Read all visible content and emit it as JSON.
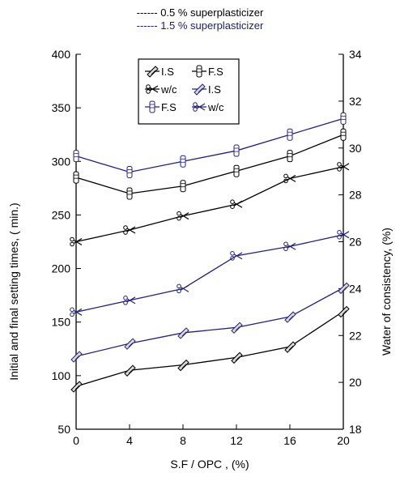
{
  "header": {
    "line1": "------ 0.5 % superplasticizer",
    "line2": "------ 1.5 % superplasticizer"
  },
  "chart_data": {
    "type": "line",
    "xlabel": "S.F / OPC  , (%)",
    "ylabel": "Initial and final setting times, ( min.)",
    "y2label": "Water of consistency, (%)",
    "x": [
      0,
      4,
      8,
      12,
      16,
      20
    ],
    "xlim": [
      0,
      20
    ],
    "ylim": [
      50,
      400
    ],
    "y2lim": [
      18,
      34
    ],
    "xticks": [
      "0",
      "4",
      "8",
      "12",
      "16",
      "20"
    ],
    "yticks": [
      "50",
      "100",
      "150",
      "200",
      "250",
      "300",
      "350",
      "400"
    ],
    "y2ticks": [
      "18",
      "20",
      "22",
      "24",
      "26",
      "28",
      "30",
      "32",
      "34"
    ],
    "grid": false,
    "legend_position": "top-center",
    "legend": [
      {
        "label": "I.S",
        "series": "is_05"
      },
      {
        "label": "F.S",
        "series": "fs_05"
      },
      {
        "label": "w/c",
        "series": "wc_05"
      },
      {
        "label": "I.S",
        "series": "is_15"
      },
      {
        "label": "F.S",
        "series": "fs_15"
      },
      {
        "label": "w/c",
        "series": "wc_15"
      }
    ],
    "series": [
      {
        "id": "is_05",
        "group": "0.5 % superplasticizer",
        "axis": "left",
        "values": [
          90,
          105,
          110,
          117,
          127,
          160
        ],
        "color": "#000000",
        "marker": "pencil"
      },
      {
        "id": "fs_05",
        "group": "0.5 % superplasticizer",
        "axis": "left",
        "values": [
          285,
          270,
          277,
          291,
          305,
          325
        ],
        "color": "#000000",
        "marker": "vial"
      },
      {
        "id": "wc_05",
        "group": "0.5 % superplasticizer",
        "axis": "right",
        "values": [
          26.0,
          26.5,
          27.1,
          27.6,
          28.7,
          29.2
        ],
        "color": "#000000",
        "marker": "scissors"
      },
      {
        "id": "is_15",
        "group": "1.5 % superplasticizer",
        "axis": "left",
        "values": [
          118,
          130,
          140,
          145,
          155,
          182
        ],
        "color": "#23237a",
        "marker": "pencil"
      },
      {
        "id": "fs_15",
        "group": "1.5 % superplasticizer",
        "axis": "left",
        "values": [
          305,
          290,
          300,
          310,
          325,
          340
        ],
        "color": "#23237a",
        "marker": "vial"
      },
      {
        "id": "wc_15",
        "group": "1.5 % superplasticizer",
        "axis": "right",
        "values": [
          23.0,
          23.5,
          24.0,
          25.4,
          25.8,
          26.3
        ],
        "color": "#23237a",
        "marker": "scissors"
      }
    ]
  }
}
